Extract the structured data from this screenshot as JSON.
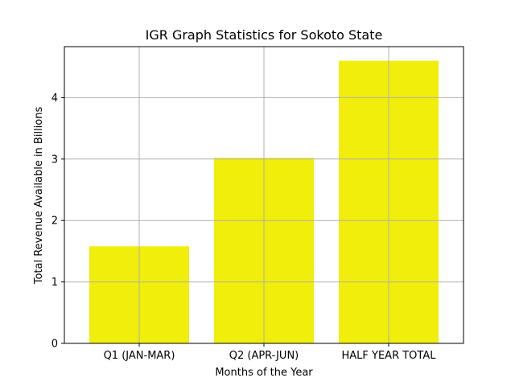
{
  "chart_data": {
    "type": "bar",
    "title": "IGR Graph Statistics for Sokoto State",
    "xlabel": "Months of the Year",
    "ylabel": "Total Revenue Available in Billions",
    "categories": [
      "Q1 (JAN-MAR)",
      "Q2 (APR-JUN)",
      "HALF YEAR TOTAL"
    ],
    "values": [
      1.58,
      3.02,
      4.6
    ],
    "ylim": [
      0,
      4.83
    ],
    "yticks": [
      0,
      1,
      2,
      3,
      4
    ],
    "grid": true,
    "bar_color": "#f0ee0a",
    "grid_color": "#b0b0b0"
  }
}
